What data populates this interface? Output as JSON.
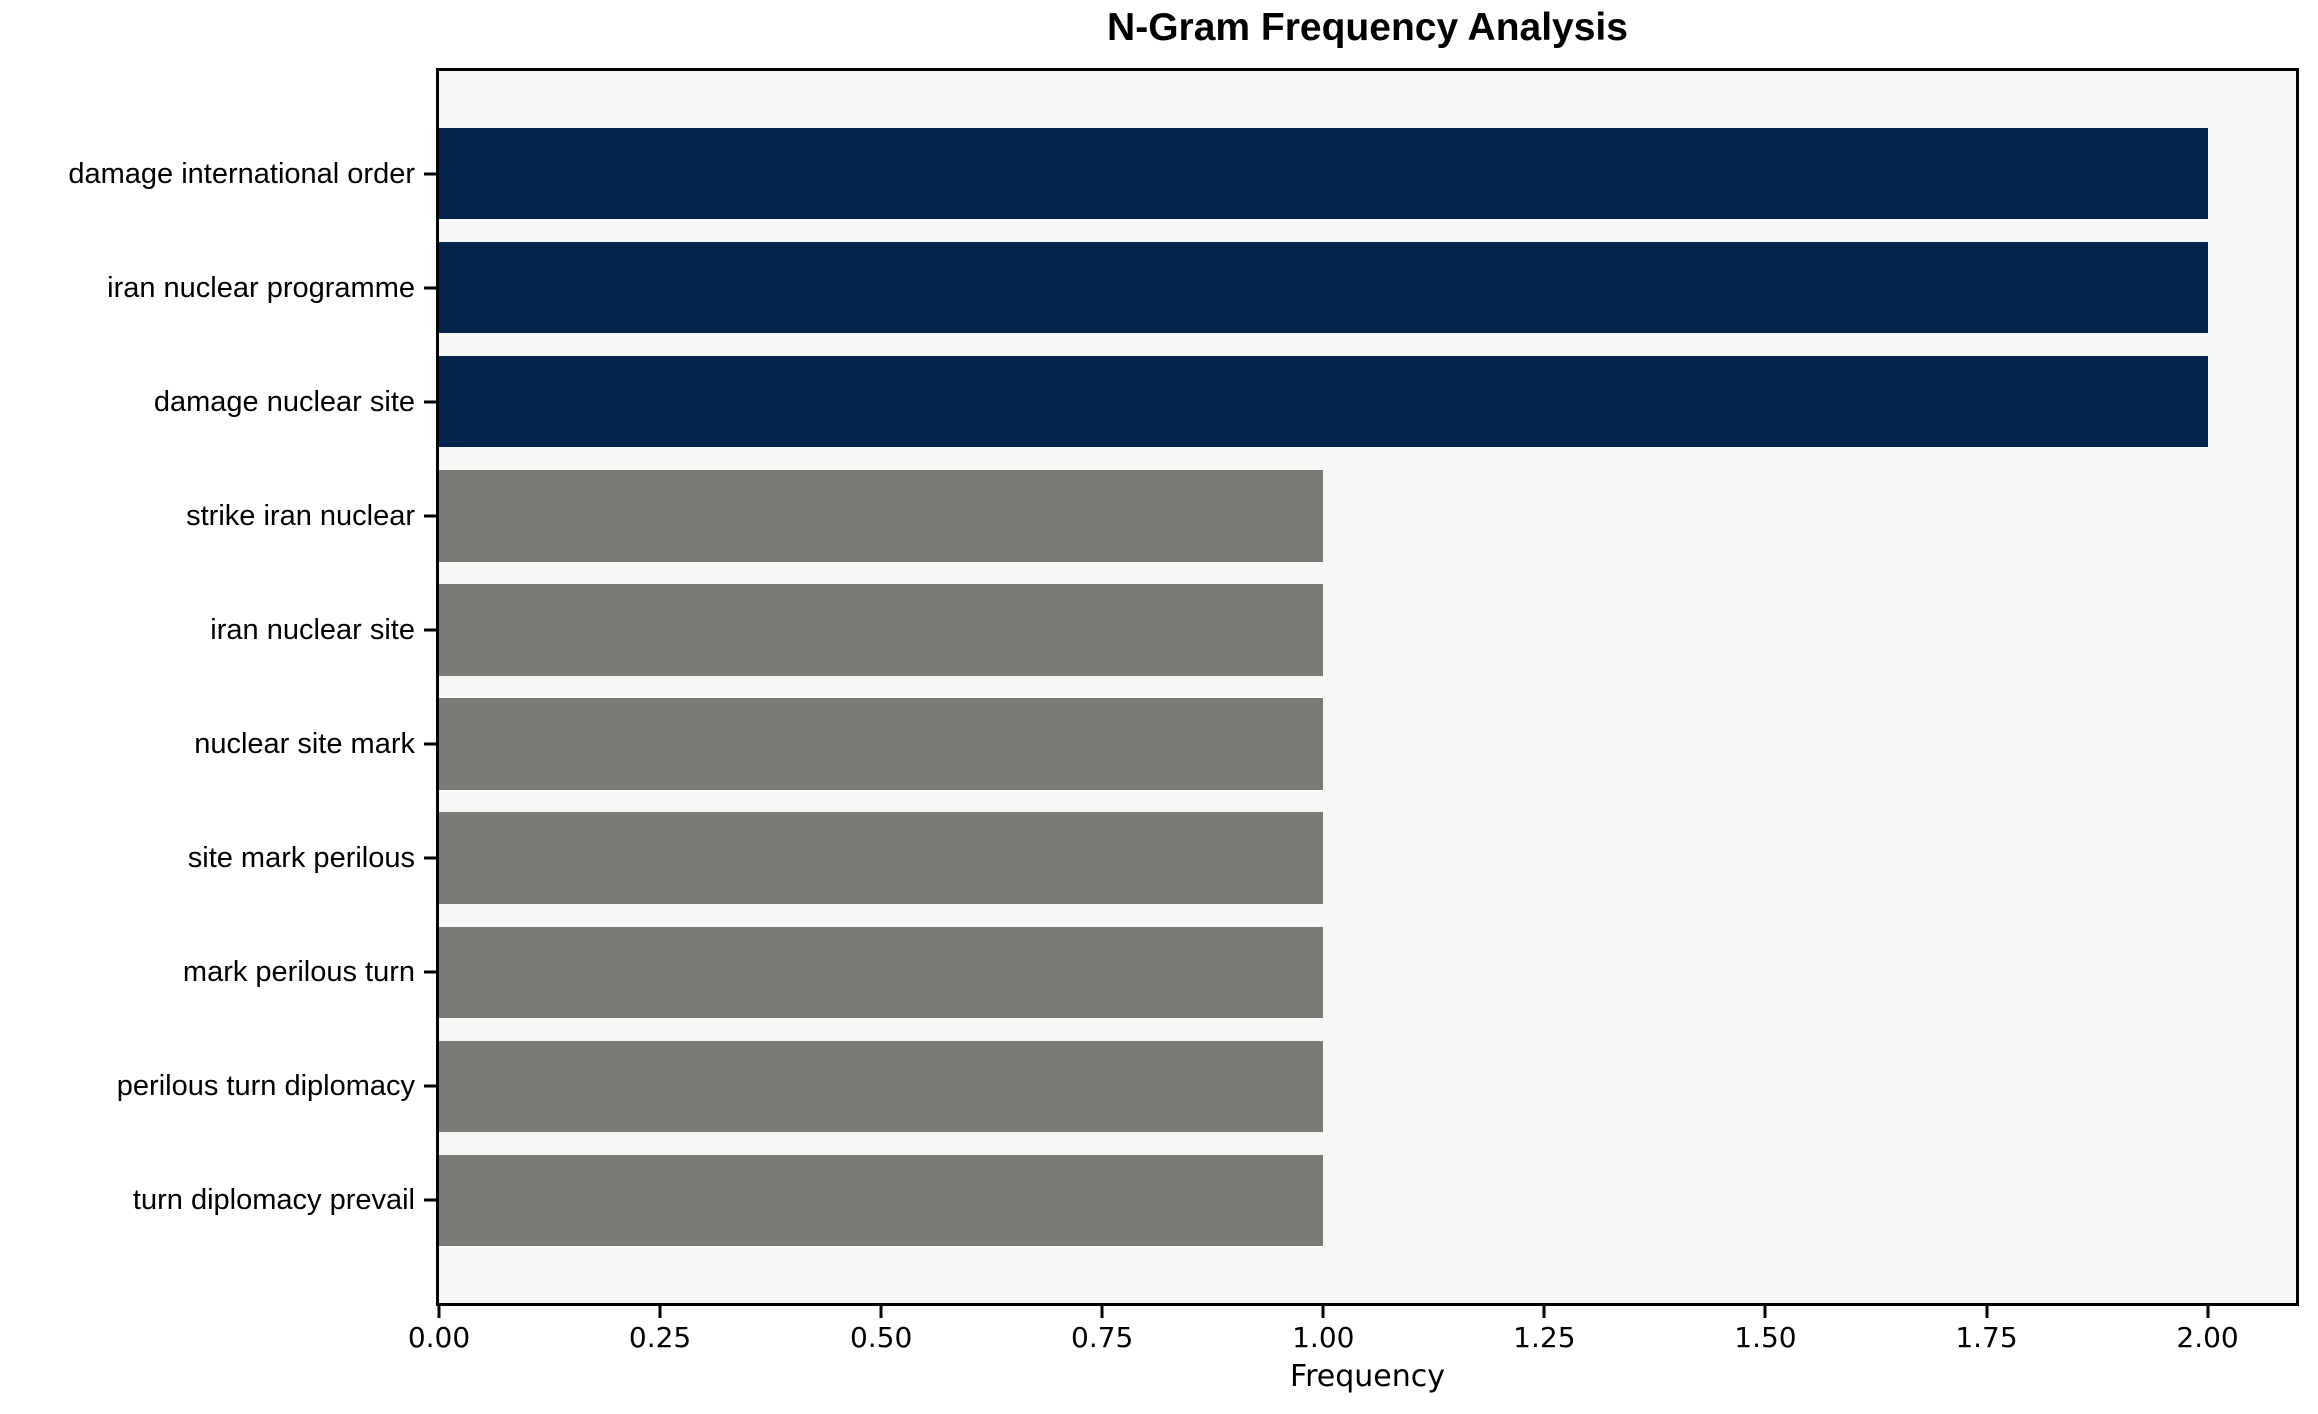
{
  "chart_data": {
    "type": "bar",
    "orientation": "horizontal",
    "title": "N-Gram Frequency Analysis",
    "xlabel": "Frequency",
    "ylabel": "",
    "categories": [
      "damage international order",
      "iran nuclear programme",
      "damage nuclear site",
      "strike iran nuclear",
      "iran nuclear site",
      "nuclear site mark",
      "site mark perilous",
      "mark perilous turn",
      "perilous turn diplomacy",
      "turn diplomacy prevail"
    ],
    "values": [
      2,
      2,
      2,
      1,
      1,
      1,
      1,
      1,
      1,
      1
    ],
    "bar_colors": [
      "#02244d",
      "#02244d",
      "#02244d",
      "#7b7a76",
      "#7b7a76",
      "#7b7a76",
      "#7b7a76",
      "#7b7a76",
      "#7b7a76",
      "#7b7a76"
    ],
    "xlim": [
      0,
      2.1
    ],
    "xticks": [
      "0.00",
      "0.25",
      "0.50",
      "0.75",
      "1.00",
      "1.25",
      "1.50",
      "1.75",
      "2.00"
    ],
    "grid": false,
    "legend": null,
    "bar_fraction": 0.8,
    "axis_pad_units": 0.9,
    "colors": {
      "highlight_bar": "#02244d",
      "default_bar": "#7b7a76",
      "plot_background": "#f7f7f6",
      "figure_background": "#ffffff",
      "text": "#000000",
      "spine": "#000000"
    }
  }
}
